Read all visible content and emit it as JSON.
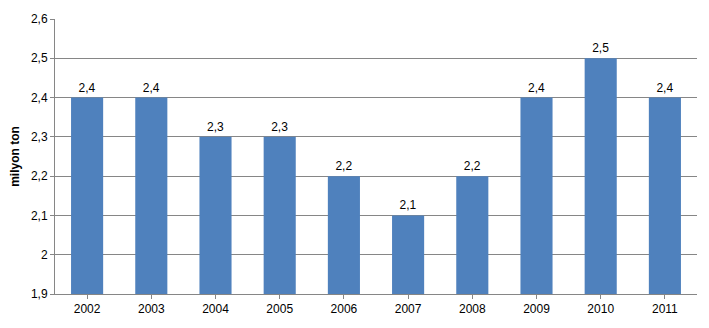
{
  "chart_data": {
    "type": "bar",
    "y_label": "milyon ton",
    "categories": [
      "2002",
      "2003",
      "2004",
      "2005",
      "2006",
      "2007",
      "2008",
      "2009",
      "2010",
      "2011"
    ],
    "values": [
      2.4,
      2.4,
      2.3,
      2.3,
      2.2,
      2.1,
      2.2,
      2.4,
      2.5,
      2.4
    ],
    "value_labels": [
      "2,4",
      "2,4",
      "2,3",
      "2,3",
      "2,2",
      "2,1",
      "2,2",
      "2,4",
      "2,5",
      "2,4"
    ],
    "color": "#4f81bd",
    "ylim": [
      1.9,
      2.6
    ],
    "yticks": [
      {
        "value": 1.9,
        "label": "1,9"
      },
      2,
      {
        "value": 2.1,
        "label": "2,1"
      },
      {
        "value": 2.2,
        "label": "2,2"
      },
      {
        "value": 2.3,
        "label": "2,3"
      },
      {
        "value": 2.4,
        "label": "2,4"
      },
      {
        "value": 2.5,
        "label": "2,5"
      },
      {
        "value": 2.6,
        "label": "2,6"
      }
    ],
    "grid": true,
    "data_labels": true
  }
}
